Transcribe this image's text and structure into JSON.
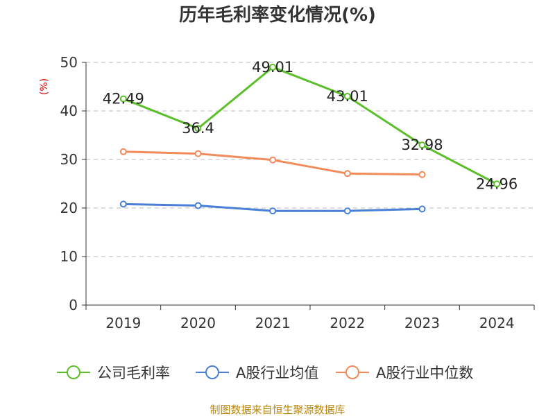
{
  "title": "历年毛利率变化情况(%)",
  "source": "制图数据来自恒生聚源数据库",
  "colors": {
    "gross_margin": "#5cbf2a",
    "industry_avg": "#4a7fd8",
    "industry_median": "#f28b5a",
    "grid": "#bbbbbb",
    "axis": "#333333"
  },
  "chart_data": {
    "type": "line",
    "title": "历年毛利率变化情况(%)",
    "ylabel": "(%)",
    "xlabel": "",
    "ylim": [
      0,
      50
    ],
    "yticks": [
      0,
      10,
      20,
      30,
      40,
      50
    ],
    "grid": "y-dashed",
    "legend_position": "bottom",
    "categories": [
      "2019",
      "2020",
      "2021",
      "2022",
      "2023",
      "2024"
    ],
    "series": [
      {
        "name": "公司毛利率",
        "color": "#5cbf2a",
        "values": [
          42.49,
          36.4,
          49.01,
          43.01,
          32.98,
          24.96
        ],
        "labels": [
          "42.49",
          "36.4",
          "49.01",
          "43.01",
          "32.98",
          "24.96"
        ]
      },
      {
        "name": "A股行业均值",
        "color": "#4a7fd8",
        "values": [
          20.8,
          20.5,
          19.4,
          19.4,
          19.8,
          null
        ]
      },
      {
        "name": "A股行业中位数",
        "color": "#f28b5a",
        "values": [
          31.6,
          31.2,
          29.9,
          27.1,
          26.9,
          null
        ]
      }
    ]
  }
}
